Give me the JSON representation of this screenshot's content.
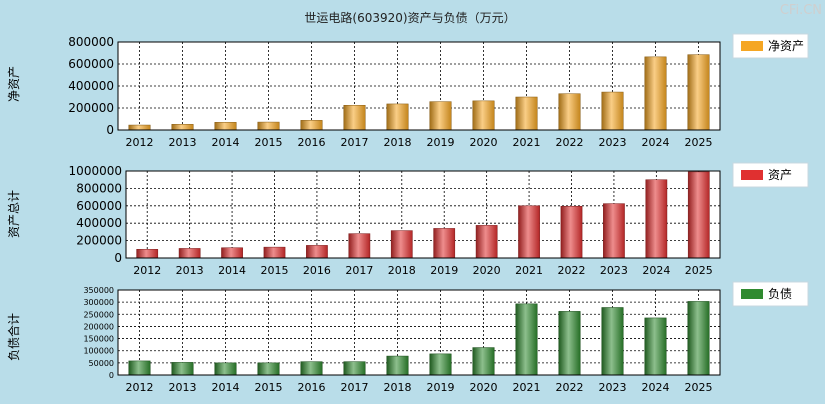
{
  "title": "世运电路(603920)资产与负债（万元）",
  "watermark": "CFi.CN",
  "chart_data": [
    {
      "type": "bar",
      "ylabel": "净资产",
      "legend": "净资产",
      "legend_position": "right",
      "color": "#f5a623",
      "grid": true,
      "categories": [
        "2012",
        "2013",
        "2014",
        "2015",
        "2016",
        "2017",
        "2018",
        "2019",
        "2020",
        "2021",
        "2022",
        "2023",
        "2024",
        "2025"
      ],
      "values": [
        45000,
        52000,
        70000,
        72000,
        88000,
        225000,
        237000,
        258000,
        265000,
        300000,
        330000,
        345000,
        665000,
        685000
      ],
      "ylim": [
        0,
        800000
      ],
      "yticks": [
        0,
        200000,
        400000,
        600000,
        800000
      ],
      "yticklabels": [
        "0",
        "200000",
        "400000",
        "600000",
        "800000"
      ]
    },
    {
      "type": "bar",
      "ylabel": "资产总计",
      "legend": "资产",
      "legend_position": "right",
      "color": "#e03030",
      "grid": true,
      "categories": [
        "2012",
        "2013",
        "2014",
        "2015",
        "2016",
        "2017",
        "2018",
        "2019",
        "2020",
        "2021",
        "2022",
        "2023",
        "2024",
        "2025"
      ],
      "values": [
        100000,
        110000,
        118000,
        125000,
        145000,
        280000,
        315000,
        340000,
        375000,
        600000,
        595000,
        625000,
        900000,
        990000
      ],
      "ylim": [
        0,
        1000000
      ],
      "yticks": [
        0,
        200000,
        400000,
        600000,
        800000,
        1000000
      ],
      "yticklabels": [
        "0",
        "200000",
        "400000",
        "600000",
        "800000",
        "1000000"
      ]
    },
    {
      "type": "bar",
      "ylabel": "负债合计",
      "legend": "负债",
      "legend_position": "right",
      "color": "#2f8a2f",
      "grid": true,
      "categories": [
        "2012",
        "2013",
        "2014",
        "2015",
        "2016",
        "2017",
        "2018",
        "2019",
        "2020",
        "2021",
        "2022",
        "2023",
        "2024",
        "2025"
      ],
      "values": [
        58000,
        52000,
        50000,
        50000,
        55000,
        55000,
        78000,
        87000,
        113000,
        293000,
        262000,
        278000,
        235000,
        303000
      ],
      "ylim": [
        0,
        350000
      ],
      "yticks": [
        0,
        50000,
        100000,
        150000,
        200000,
        250000,
        300000,
        350000
      ],
      "yticklabels": [
        "0",
        "50000",
        "100000",
        "150000",
        "200000",
        "250000",
        "300000",
        "350000"
      ]
    }
  ]
}
